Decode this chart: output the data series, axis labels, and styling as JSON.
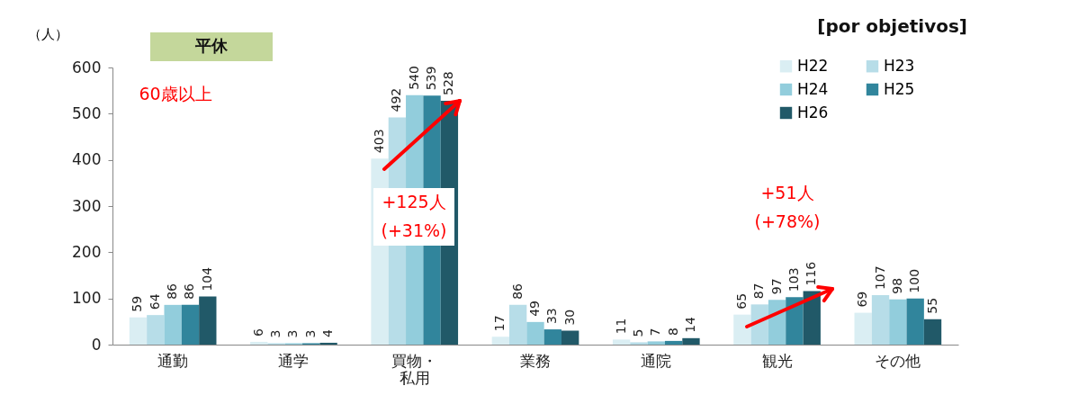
{
  "chart_data": {
    "type": "bar",
    "ylabel": "（人）",
    "categories": [
      "通勤",
      "通学",
      "買物・私用",
      "業務",
      "通院",
      "観光",
      "その他"
    ],
    "series": [
      {
        "name": "H22",
        "color": "#daeef3",
        "values": [
          59,
          6,
          403,
          17,
          11,
          65,
          69
        ]
      },
      {
        "name": "H23",
        "color": "#b7dde8",
        "values": [
          64,
          3,
          492,
          86,
          5,
          87,
          107
        ]
      },
      {
        "name": "H24",
        "color": "#92cddc",
        "values": [
          86,
          3,
          540,
          49,
          7,
          97,
          98
        ]
      },
      {
        "name": "H25",
        "color": "#31859c",
        "values": [
          86,
          3,
          539,
          33,
          8,
          103,
          100
        ]
      },
      {
        "name": "H26",
        "color": "#215968",
        "values": [
          104,
          4,
          528,
          30,
          14,
          116,
          55
        ]
      }
    ],
    "ylim": [
      0,
      600
    ],
    "yticks": [
      0,
      100,
      200,
      300,
      400,
      500,
      600
    ],
    "data_labels": true,
    "legend": "top right",
    "grid": false,
    "annotations": [
      "[por objetivos]",
      "平休",
      "60歳以上",
      "+125人\n(+31%)",
      "+51人\n(+78%)"
    ]
  }
}
